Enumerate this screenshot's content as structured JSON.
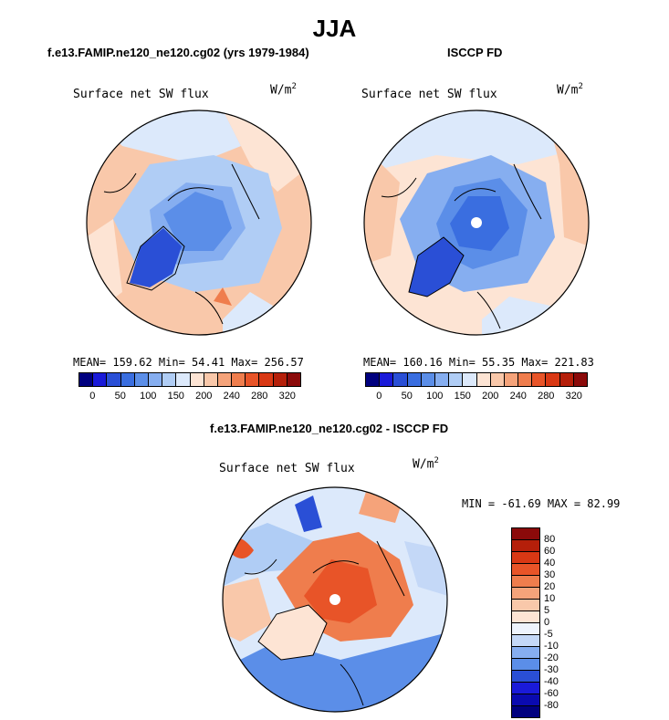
{
  "main_title": "JJA",
  "panel_left": {
    "title": "f.e13.FAMIP.ne120_ne120.cg02 (yrs 1979-1984)",
    "variable": "Surface net SW flux",
    "units_base": "W/m",
    "units_exp": "2",
    "stats": "MEAN= 159.62  Min=  54.41  Max= 256.57"
  },
  "panel_right": {
    "title": "ISCCP FD",
    "variable": "Surface net SW flux",
    "units_base": "W/m",
    "units_exp": "2",
    "stats": "MEAN= 160.16  Min=  55.35  Max= 221.83"
  },
  "panel_diff": {
    "title": "f.e13.FAMIP.ne120_ne120.cg02 - ISCCP FD",
    "variable": "Surface net SW flux",
    "units_base": "W/m",
    "units_exp": "2",
    "stats": "MIN = -61.69 MAX =  82.99"
  },
  "colorbar_abs": {
    "tick_labels": [
      "0",
      "50",
      "100",
      "150",
      "200",
      "240",
      "280",
      "320"
    ],
    "colors": [
      "#00007f",
      "#1a1ad9",
      "#2a4fd6",
      "#3a6ee0",
      "#5b8ee8",
      "#86aef0",
      "#b0cdf5",
      "#dce9fb",
      "#fde4d4",
      "#f9c8aa",
      "#f5a37a",
      "#ef7d4d",
      "#e85428",
      "#d93814",
      "#b51f0a",
      "#8b0a0a"
    ]
  },
  "colorbar_diff": {
    "labels": [
      "80",
      "60",
      "40",
      "30",
      "20",
      "10",
      "5",
      "0",
      "-5",
      "-10",
      "-20",
      "-30",
      "-40",
      "-60",
      "-80"
    ],
    "colors": [
      "#8b0a0a",
      "#b51f0a",
      "#d93814",
      "#e85428",
      "#ef7d4d",
      "#f5a37a",
      "#f9c8aa",
      "#fde4d4",
      "#eef4fd",
      "#c4d8f7",
      "#86aef0",
      "#5b8ee8",
      "#2a4fd6",
      "#1a1ad9",
      "#0a0ab0",
      "#00007f"
    ]
  },
  "map_colors": {
    "ocean_warm": "#f9c8aa",
    "ocean_cool": "#dce9fb",
    "arctic_blue": "#86aef0",
    "deep_blue": "#3a6ee0",
    "greenland": "#2a4fd6",
    "diff_red": "#ef7d4d",
    "diff_light": "#fde4d4",
    "diff_blue": "#5b8ee8",
    "pole_hole": "#ffffff"
  }
}
